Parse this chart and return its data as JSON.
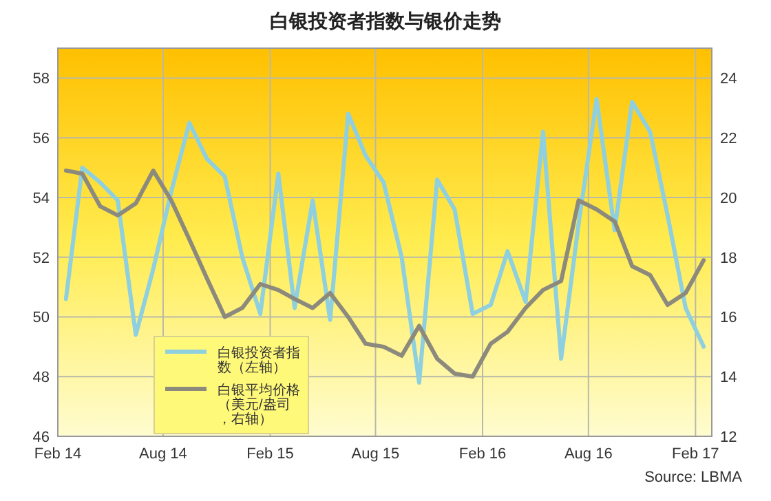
{
  "chart_data": {
    "type": "line",
    "title": "白银投资者指数与银价走势",
    "x": [
      "2014-02-15",
      "2014-03-15",
      "2014-04-15",
      "2014-05-15",
      "2014-06-15",
      "2014-07-15",
      "2014-08-15",
      "2014-09-15",
      "2014-10-15",
      "2014-11-15",
      "2014-12-15",
      "2015-01-15",
      "2015-02-15",
      "2015-03-15",
      "2015-04-15",
      "2015-05-15",
      "2015-06-15",
      "2015-07-15",
      "2015-08-15",
      "2015-09-15",
      "2015-10-15",
      "2015-11-15",
      "2015-12-15",
      "2016-01-15",
      "2016-02-15",
      "2016-03-15",
      "2016-04-15",
      "2016-05-15",
      "2016-06-15",
      "2016-07-15",
      "2016-08-15",
      "2016-09-15",
      "2016-10-15",
      "2016-11-15",
      "2016-12-15",
      "2017-01-15",
      "2017-02-15"
    ],
    "series": [
      {
        "name": "白银投资者指数（左轴）",
        "color": "#8ecfe0",
        "values": [
          50.6,
          55.0,
          54.5,
          53.9,
          49.4,
          51.6,
          54.2,
          56.5,
          55.3,
          54.7,
          52.0,
          50.1,
          54.8,
          50.3,
          53.9,
          49.9,
          56.8,
          55.4,
          54.5,
          52.0,
          47.8,
          54.6,
          53.6,
          50.1,
          50.4,
          52.2,
          50.5,
          56.2,
          48.6,
          53.1,
          57.3,
          52.9,
          57.2,
          56.2,
          53.4,
          50.3,
          49.0
        ]
      },
      {
        "name": "白银平均价格（美元/盎司，右轴）",
        "color": "#8c8a7c",
        "axis": "y2",
        "values": [
          20.9,
          20.8,
          19.7,
          19.4,
          19.8,
          20.9,
          19.9,
          18.6,
          17.3,
          16.0,
          16.3,
          17.1,
          16.9,
          16.6,
          16.3,
          16.8,
          16.0,
          15.1,
          15.0,
          14.7,
          15.7,
          14.6,
          14.1,
          14.0,
          15.1,
          15.5,
          16.3,
          16.9,
          17.2,
          19.9,
          19.6,
          19.2,
          17.7,
          17.4,
          16.4,
          16.8,
          17.9
        ]
      }
    ],
    "xlim": [
      "2014-02-01",
      "2017-03-01"
    ],
    "xticks": [
      {
        "value": "2014-02-01",
        "label": "Feb 14"
      },
      {
        "value": "2014-08-01",
        "label": "Aug 14"
      },
      {
        "value": "2015-02-01",
        "label": "Feb 15"
      },
      {
        "value": "2015-08-01",
        "label": "Aug 15"
      },
      {
        "value": "2016-02-01",
        "label": "Feb 16"
      },
      {
        "value": "2016-08-01",
        "label": "Aug 16"
      },
      {
        "value": "2017-02-01",
        "label": "Feb 17"
      }
    ],
    "ylim": [
      46,
      59
    ],
    "yticks": [
      46,
      48,
      50,
      52,
      54,
      56,
      58
    ],
    "y2lim": [
      12,
      25
    ],
    "y2ticks": [
      12,
      14,
      16,
      18,
      20,
      22,
      24
    ],
    "grid": true,
    "legend": "bottom left",
    "marker": "none",
    "line_style": "solid",
    "annotations": [
      "Source: LBMA"
    ]
  }
}
